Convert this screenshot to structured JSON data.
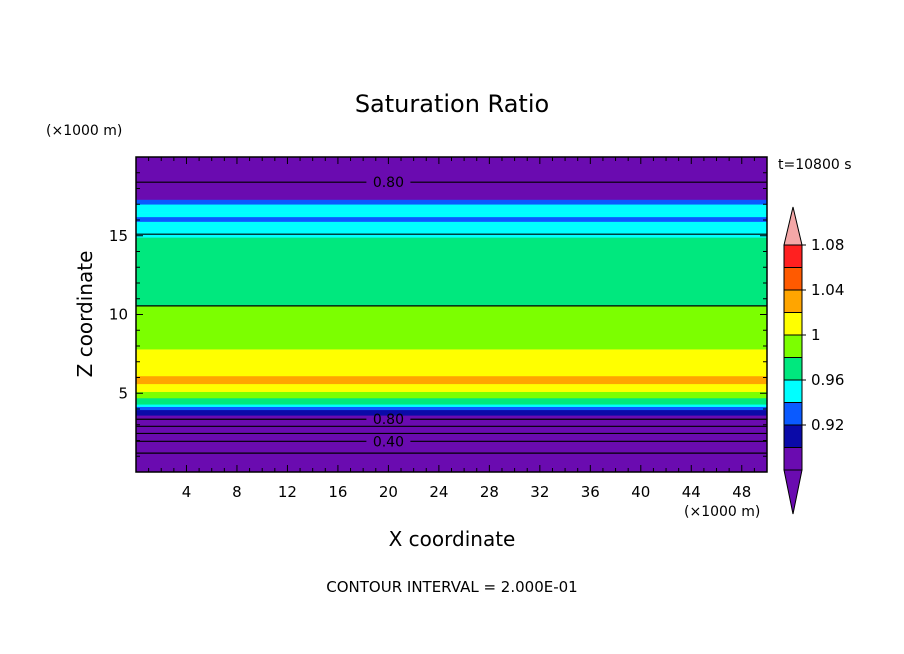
{
  "chart_data": {
    "type": "heatmap",
    "title": "Saturation Ratio",
    "xlabel": "X coordinate",
    "ylabel": "Z coordinate",
    "x_unit": "(×1000 m)",
    "y_unit": "(×1000 m)",
    "xlim": [
      0,
      50
    ],
    "ylim": [
      0,
      20
    ],
    "x_ticks": [
      4,
      8,
      12,
      16,
      20,
      24,
      28,
      32,
      36,
      40,
      44,
      48
    ],
    "y_ticks": [
      5,
      10,
      15
    ],
    "time_label": "t=10800 s",
    "footer": "CONTOUR INTERVAL = 2.000E-01",
    "colorbar": {
      "labels": [
        "0.92",
        "0.96",
        "1",
        "1.04",
        "1.08"
      ],
      "colors": [
        "#6a0bb0",
        "#0a0aa8",
        "#0a5aff",
        "#00ffff",
        "#00e87e",
        "#7cff00",
        "#ffff00",
        "#ffa500",
        "#ff5a00",
        "#ff2020"
      ],
      "top_color": "#f4a7a7",
      "bottom_color": "#6a0bb0"
    },
    "bands": [
      {
        "z0": 0.0,
        "z1": 3.6,
        "color": "#6a0bb0"
      },
      {
        "z0": 3.6,
        "z1": 3.95,
        "color": "#0a0aa8"
      },
      {
        "z0": 3.95,
        "z1": 4.15,
        "color": "#0a5aff"
      },
      {
        "z0": 4.15,
        "z1": 4.3,
        "color": "#00ffff"
      },
      {
        "z0": 4.3,
        "z1": 4.7,
        "color": "#00e87e"
      },
      {
        "z0": 4.7,
        "z1": 5.1,
        "color": "#7cff00"
      },
      {
        "z0": 5.1,
        "z1": 5.6,
        "color": "#ffff00"
      },
      {
        "z0": 5.6,
        "z1": 6.1,
        "color": "#ffa500"
      },
      {
        "z0": 6.1,
        "z1": 7.8,
        "color": "#ffff00"
      },
      {
        "z0": 7.8,
        "z1": 10.55,
        "color": "#7cff00"
      },
      {
        "z0": 10.55,
        "z1": 14.9,
        "color": "#00e87e"
      },
      {
        "z0": 14.9,
        "z1": 15.9,
        "color": "#00ffff"
      },
      {
        "z0": 15.9,
        "z1": 16.2,
        "color": "#0a5aff"
      },
      {
        "z0": 16.2,
        "z1": 16.5,
        "color": "#00ffff"
      },
      {
        "z0": 16.5,
        "z1": 17.0,
        "color": "#00ffff"
      },
      {
        "z0": 17.0,
        "z1": 17.3,
        "color": "#0a5aff"
      },
      {
        "z0": 17.3,
        "z1": 20.0,
        "color": "#6a0bb0"
      }
    ],
    "contours": [
      {
        "z": 18.4,
        "label": "0.80"
      },
      {
        "z": 15.1,
        "label": ""
      },
      {
        "z": 10.55,
        "label": ""
      },
      {
        "z": 3.35,
        "label": "0.80"
      },
      {
        "z": 2.9,
        "label": ""
      },
      {
        "z": 2.45,
        "label": ""
      },
      {
        "z": 1.95,
        "label": "0.40"
      },
      {
        "z": 1.2,
        "label": ""
      }
    ]
  }
}
